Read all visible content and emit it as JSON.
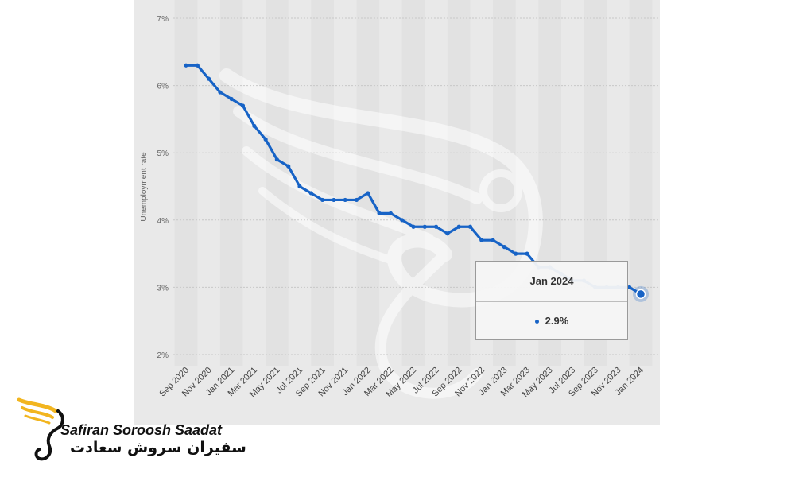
{
  "colors": {
    "line": "#1763c6",
    "panel": "#e9e9e9",
    "stripe": "#e2e2e2",
    "tooltip_dot": "#1763c6",
    "brand_gold": "#f2b51f"
  },
  "chart_data": {
    "type": "line",
    "title": "",
    "xlabel": "",
    "ylabel": "Unemployment rate",
    "ylim": [
      2,
      7
    ],
    "y_ticks": [
      "2%",
      "3%",
      "4%",
      "5%",
      "6%",
      "7%"
    ],
    "grid": "horizontal dashed",
    "x_tick_labels": [
      "Sep 2020",
      "Nov 2020",
      "Jan 2021",
      "Mar 2021",
      "May 2021",
      "Jul 2021",
      "Sep 2021",
      "Nov 2021",
      "Jan 2022",
      "Mar 2022",
      "May 2022",
      "Jul 2022",
      "Sep 2022",
      "Nov 2022",
      "Jan 2023",
      "Mar 2023",
      "May 2023",
      "Jul 2023",
      "Sep 2023",
      "Nov 2023",
      "Jan 2024"
    ],
    "x": [
      "Sep 2020",
      "Oct 2020",
      "Nov 2020",
      "Dec 2020",
      "Jan 2021",
      "Feb 2021",
      "Mar 2021",
      "Apr 2021",
      "May 2021",
      "Jun 2021",
      "Jul 2021",
      "Aug 2021",
      "Sep 2021",
      "Oct 2021",
      "Nov 2021",
      "Dec 2021",
      "Jan 2022",
      "Feb 2022",
      "Mar 2022",
      "Apr 2022",
      "May 2022",
      "Jun 2022",
      "Jul 2022",
      "Aug 2022",
      "Sep 2022",
      "Oct 2022",
      "Nov 2022",
      "Dec 2022",
      "Jan 2023",
      "Feb 2023",
      "Mar 2023",
      "Apr 2023",
      "May 2023",
      "Jun 2023",
      "Jul 2023",
      "Aug 2023",
      "Sep 2023",
      "Oct 2023",
      "Nov 2023",
      "Dec 2023",
      "Jan 2024"
    ],
    "series": [
      {
        "values": [
          6.3,
          6.3,
          6.1,
          5.9,
          5.8,
          5.7,
          5.4,
          5.2,
          4.9,
          4.8,
          4.5,
          4.4,
          4.3,
          4.3,
          4.3,
          4.3,
          4.4,
          4.1,
          4.1,
          4.0,
          3.9,
          3.9,
          3.9,
          3.8,
          3.9,
          3.9,
          3.7,
          3.7,
          3.6,
          3.5,
          3.5,
          3.3,
          3.3,
          3.2,
          3.1,
          3.1,
          3.0,
          3.0,
          3.0,
          3.0,
          2.9
        ]
      }
    ]
  },
  "tooltip": {
    "title": "Jan 2024",
    "value": "2.9%"
  },
  "brand": {
    "name_en": "Safiran Soroosh Saadat",
    "name_fa": "سفیران سروش سعادت"
  }
}
